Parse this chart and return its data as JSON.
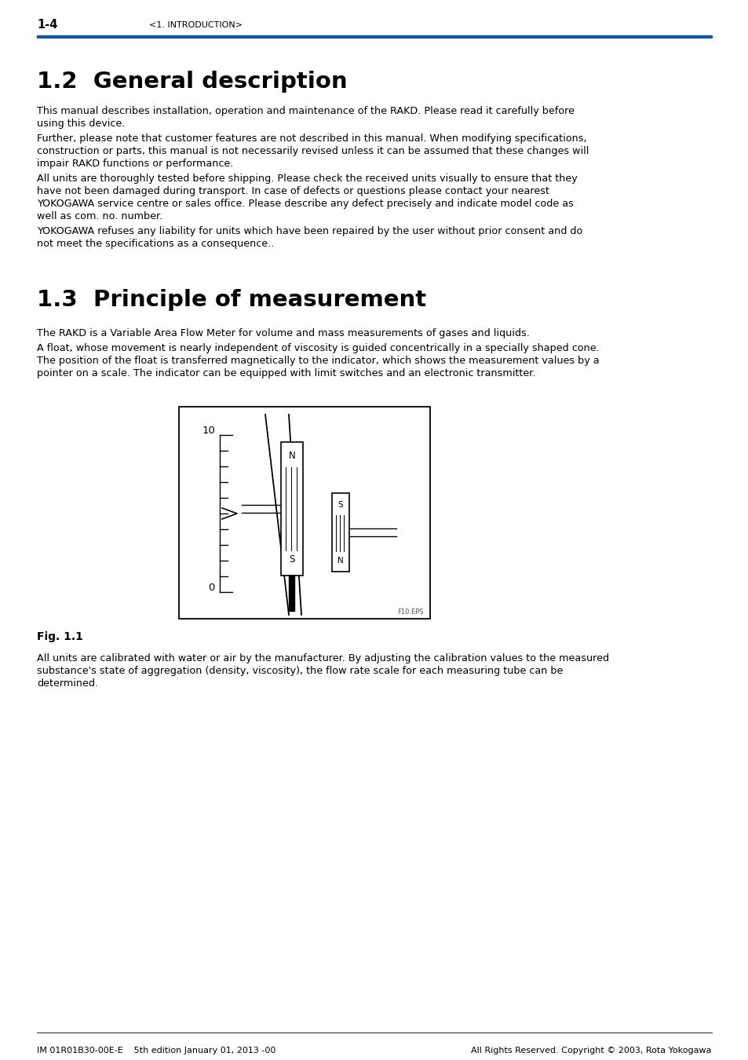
{
  "page_number": "1-4",
  "header_center": "<1. INTRODUCTION>",
  "header_line_color": "#1e5799",
  "section1_title": "1.2  General description",
  "section1_body": [
    "This manual describes installation, operation and maintenance of the RAKD. Please read it carefully before\nusing this device.",
    "Further, please note that customer features are not described in this manual. When modifying specifications,\nconstruction or parts, this manual is not necessarily revised unless it can be assumed that these changes will\nimpair RAKD functions or performance.",
    "All units are thoroughly tested before shipping. Please check the received units visually to ensure that they\nhave not been damaged during transport. In case of defects or questions please contact your nearest\nYOKOGAWA service centre or sales office. Please describe any defect precisely and indicate model code as\nwell as com. no. number.",
    "YOKOGAWA refuses any liability for units which have been repaired by the user without prior consent and do\nnot meet the specifications as a consequence.."
  ],
  "section2_title": "1.3  Principle of measurement",
  "section2_body": [
    "The RAKD is a Variable Area Flow Meter for volume and mass measurements of gases and liquids.",
    "A float, whose movement is nearly independent of viscosity is guided concentrically in a specially shaped cone.\nThe position of the float is transferred magnetically to the indicator, which shows the measurement values by a\npointer on a scale. The indicator can be equipped with limit switches and an electronic transmitter."
  ],
  "fig_caption": "Fig. 1.1",
  "after_fig_text": "All units are calibrated with water or air by the manufacturer. By adjusting the calibration values to the measured\nsubstance's state of aggregation (density, viscosity), the flow rate scale for each measuring tube can be\ndetermined.",
  "footer_left": "IM 01R01B30-00E-E    5th edition January 01, 2013 -00",
  "footer_right": "All Rights Reserved. Copyright © 2003, Rota Yokogawa",
  "bg_color": "#ffffff",
  "text_color": "#000000",
  "title_color": "#000000"
}
